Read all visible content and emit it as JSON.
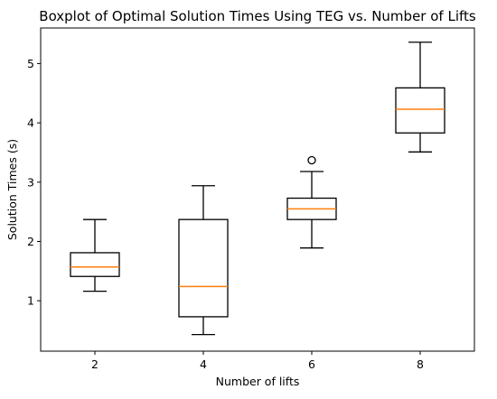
{
  "chart_data": {
    "type": "boxplot",
    "title": "Boxplot of Optimal Solution Times Using TEG vs. Number of Lifts",
    "xlabel": "Number of lifts",
    "ylabel": "Solution Times (s)",
    "ylim": [
      0.15,
      5.6
    ],
    "y_ticks": [
      1,
      2,
      3,
      4,
      5
    ],
    "grid": false,
    "categories": [
      "2",
      "4",
      "6",
      "8"
    ],
    "boxes": [
      {
        "category": "2",
        "whisker_low": 1.16,
        "q1": 1.41,
        "median": 1.57,
        "q3": 1.81,
        "whisker_high": 2.37,
        "outliers": []
      },
      {
        "category": "4",
        "whisker_low": 0.43,
        "q1": 0.73,
        "median": 1.24,
        "q3": 2.37,
        "whisker_high": 2.94,
        "outliers": []
      },
      {
        "category": "6",
        "whisker_low": 1.89,
        "q1": 2.37,
        "median": 2.55,
        "q3": 2.73,
        "whisker_high": 3.18,
        "outliers": [
          3.37
        ]
      },
      {
        "category": "8",
        "whisker_low": 3.51,
        "q1": 3.83,
        "median": 4.23,
        "q3": 4.59,
        "whisker_high": 5.36,
        "outliers": []
      }
    ],
    "colors": {
      "box": "#000000",
      "median": "#ff7f0e",
      "outlier": "#000000"
    }
  }
}
